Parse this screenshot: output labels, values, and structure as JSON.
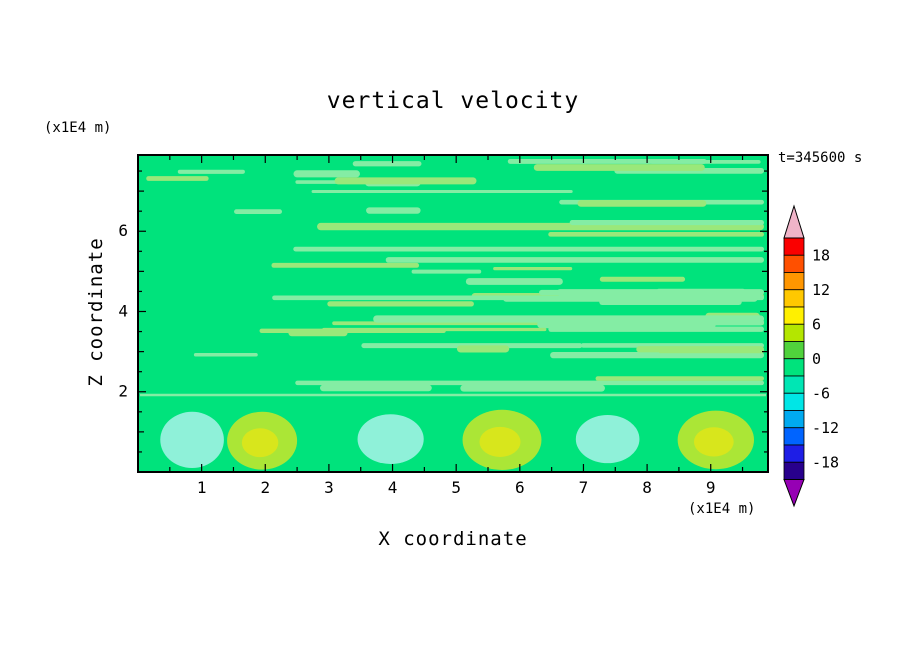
{
  "chart_data": {
    "type": "contour",
    "title": "vertical velocity",
    "xlabel": "X coordinate",
    "ylabel": "Z coordinate",
    "x_unit_label": "(x1E4 m)",
    "y_unit_label": "(x1E4 m)",
    "time_label": "t=345600 s",
    "xlim": [
      0,
      9.9
    ],
    "ylim": [
      0,
      7.9
    ],
    "x_ticks": [
      1,
      2,
      3,
      4,
      5,
      6,
      7,
      8,
      9
    ],
    "y_ticks": [
      2,
      4,
      6
    ],
    "contour_interval": 3,
    "colorbar": {
      "label_values": [
        18,
        12,
        6,
        0,
        -6,
        -12,
        -18
      ],
      "max_level": 21,
      "min_level": -21,
      "segment_colors_top_to_bottom": [
        "#fa0000",
        "#ff5000",
        "#ff9600",
        "#ffc800",
        "#fff000",
        "#b4e600",
        "#50d23c",
        "#00e37c",
        "#00e6b4",
        "#00e6e6",
        "#00aaf0",
        "#0064ff",
        "#1e1ee6",
        "#28008c"
      ],
      "arrow_top_color": "#f0b4c8",
      "arrow_bottom_color": "#9600b4"
    },
    "field": {
      "background_color": "#00e37c",
      "streak_colors": [
        "#84eda4",
        "#9ae87a"
      ],
      "streak_count": 55,
      "streak_zone_z": [
        2.05,
        7.75
      ],
      "surface_layer_top_z": 1.95,
      "cells": [
        {
          "x": 0.85,
          "z": 0.8,
          "rx": 0.5,
          "ry": 0.7,
          "color": "#8ff1d9"
        },
        {
          "x": 1.95,
          "z": 0.78,
          "rx": 0.55,
          "ry": 0.72,
          "color": "#abe636",
          "core_color": "#d8e61c"
        },
        {
          "x": 3.97,
          "z": 0.82,
          "rx": 0.52,
          "ry": 0.62,
          "color": "#8ff1d9"
        },
        {
          "x": 5.72,
          "z": 0.8,
          "rx": 0.62,
          "ry": 0.75,
          "color": "#abe636",
          "core_color": "#d8e61c"
        },
        {
          "x": 7.38,
          "z": 0.82,
          "rx": 0.5,
          "ry": 0.6,
          "color": "#8ff1d9"
        },
        {
          "x": 9.08,
          "z": 0.8,
          "rx": 0.6,
          "ry": 0.73,
          "color": "#abe636",
          "core_color": "#d8e61c"
        }
      ]
    }
  }
}
